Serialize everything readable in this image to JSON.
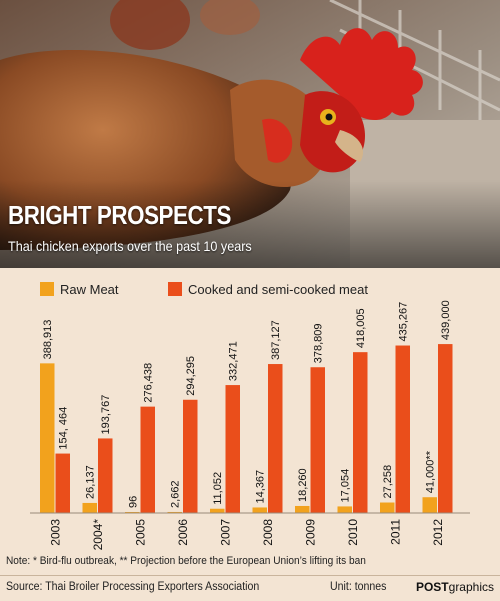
{
  "header": {
    "title": "BRIGHT PROSPECTS",
    "subtitle": "Thai chicken exports over the past 10 years"
  },
  "chart_data": {
    "type": "bar",
    "categories": [
      "2003",
      "2004*",
      "2005",
      "2006",
      "2007",
      "2008",
      "2009",
      "2010",
      "2011",
      "2012"
    ],
    "series": [
      {
        "name": "Raw Meat",
        "color": "#f2a21d",
        "values": [
          388913,
          26137,
          96,
          2662,
          11052,
          14367,
          18260,
          17054,
          27258,
          41000
        ],
        "labels": [
          "388,913",
          "26,137",
          "96",
          "2,662",
          "11,052",
          "14,367",
          "18,260",
          "17,054",
          "27,258",
          "41,000**"
        ]
      },
      {
        "name": "Cooked and semi-cooked meat",
        "color": "#ea4e1b",
        "values": [
          154464,
          193767,
          276438,
          294295,
          332471,
          387127,
          378809,
          418005,
          435267,
          439000
        ],
        "labels": [
          "154, 464",
          "193,767",
          "276,438",
          "294,295",
          "332,471",
          "387,127",
          "378,809",
          "418,005",
          "435,267",
          "439,000"
        ]
      }
    ],
    "ylim": [
      0,
      460000
    ],
    "grid": false,
    "legend": "top-left"
  },
  "footer": {
    "note": "Note: *  Bird-flu outbreak, ** Projection before the European Union’s lifting its ban",
    "source": "Source: Thai Broiler Processing Exporters Association",
    "unit": "Unit: tonnes",
    "brand_bold": "POST",
    "brand_rest": "graphics"
  }
}
